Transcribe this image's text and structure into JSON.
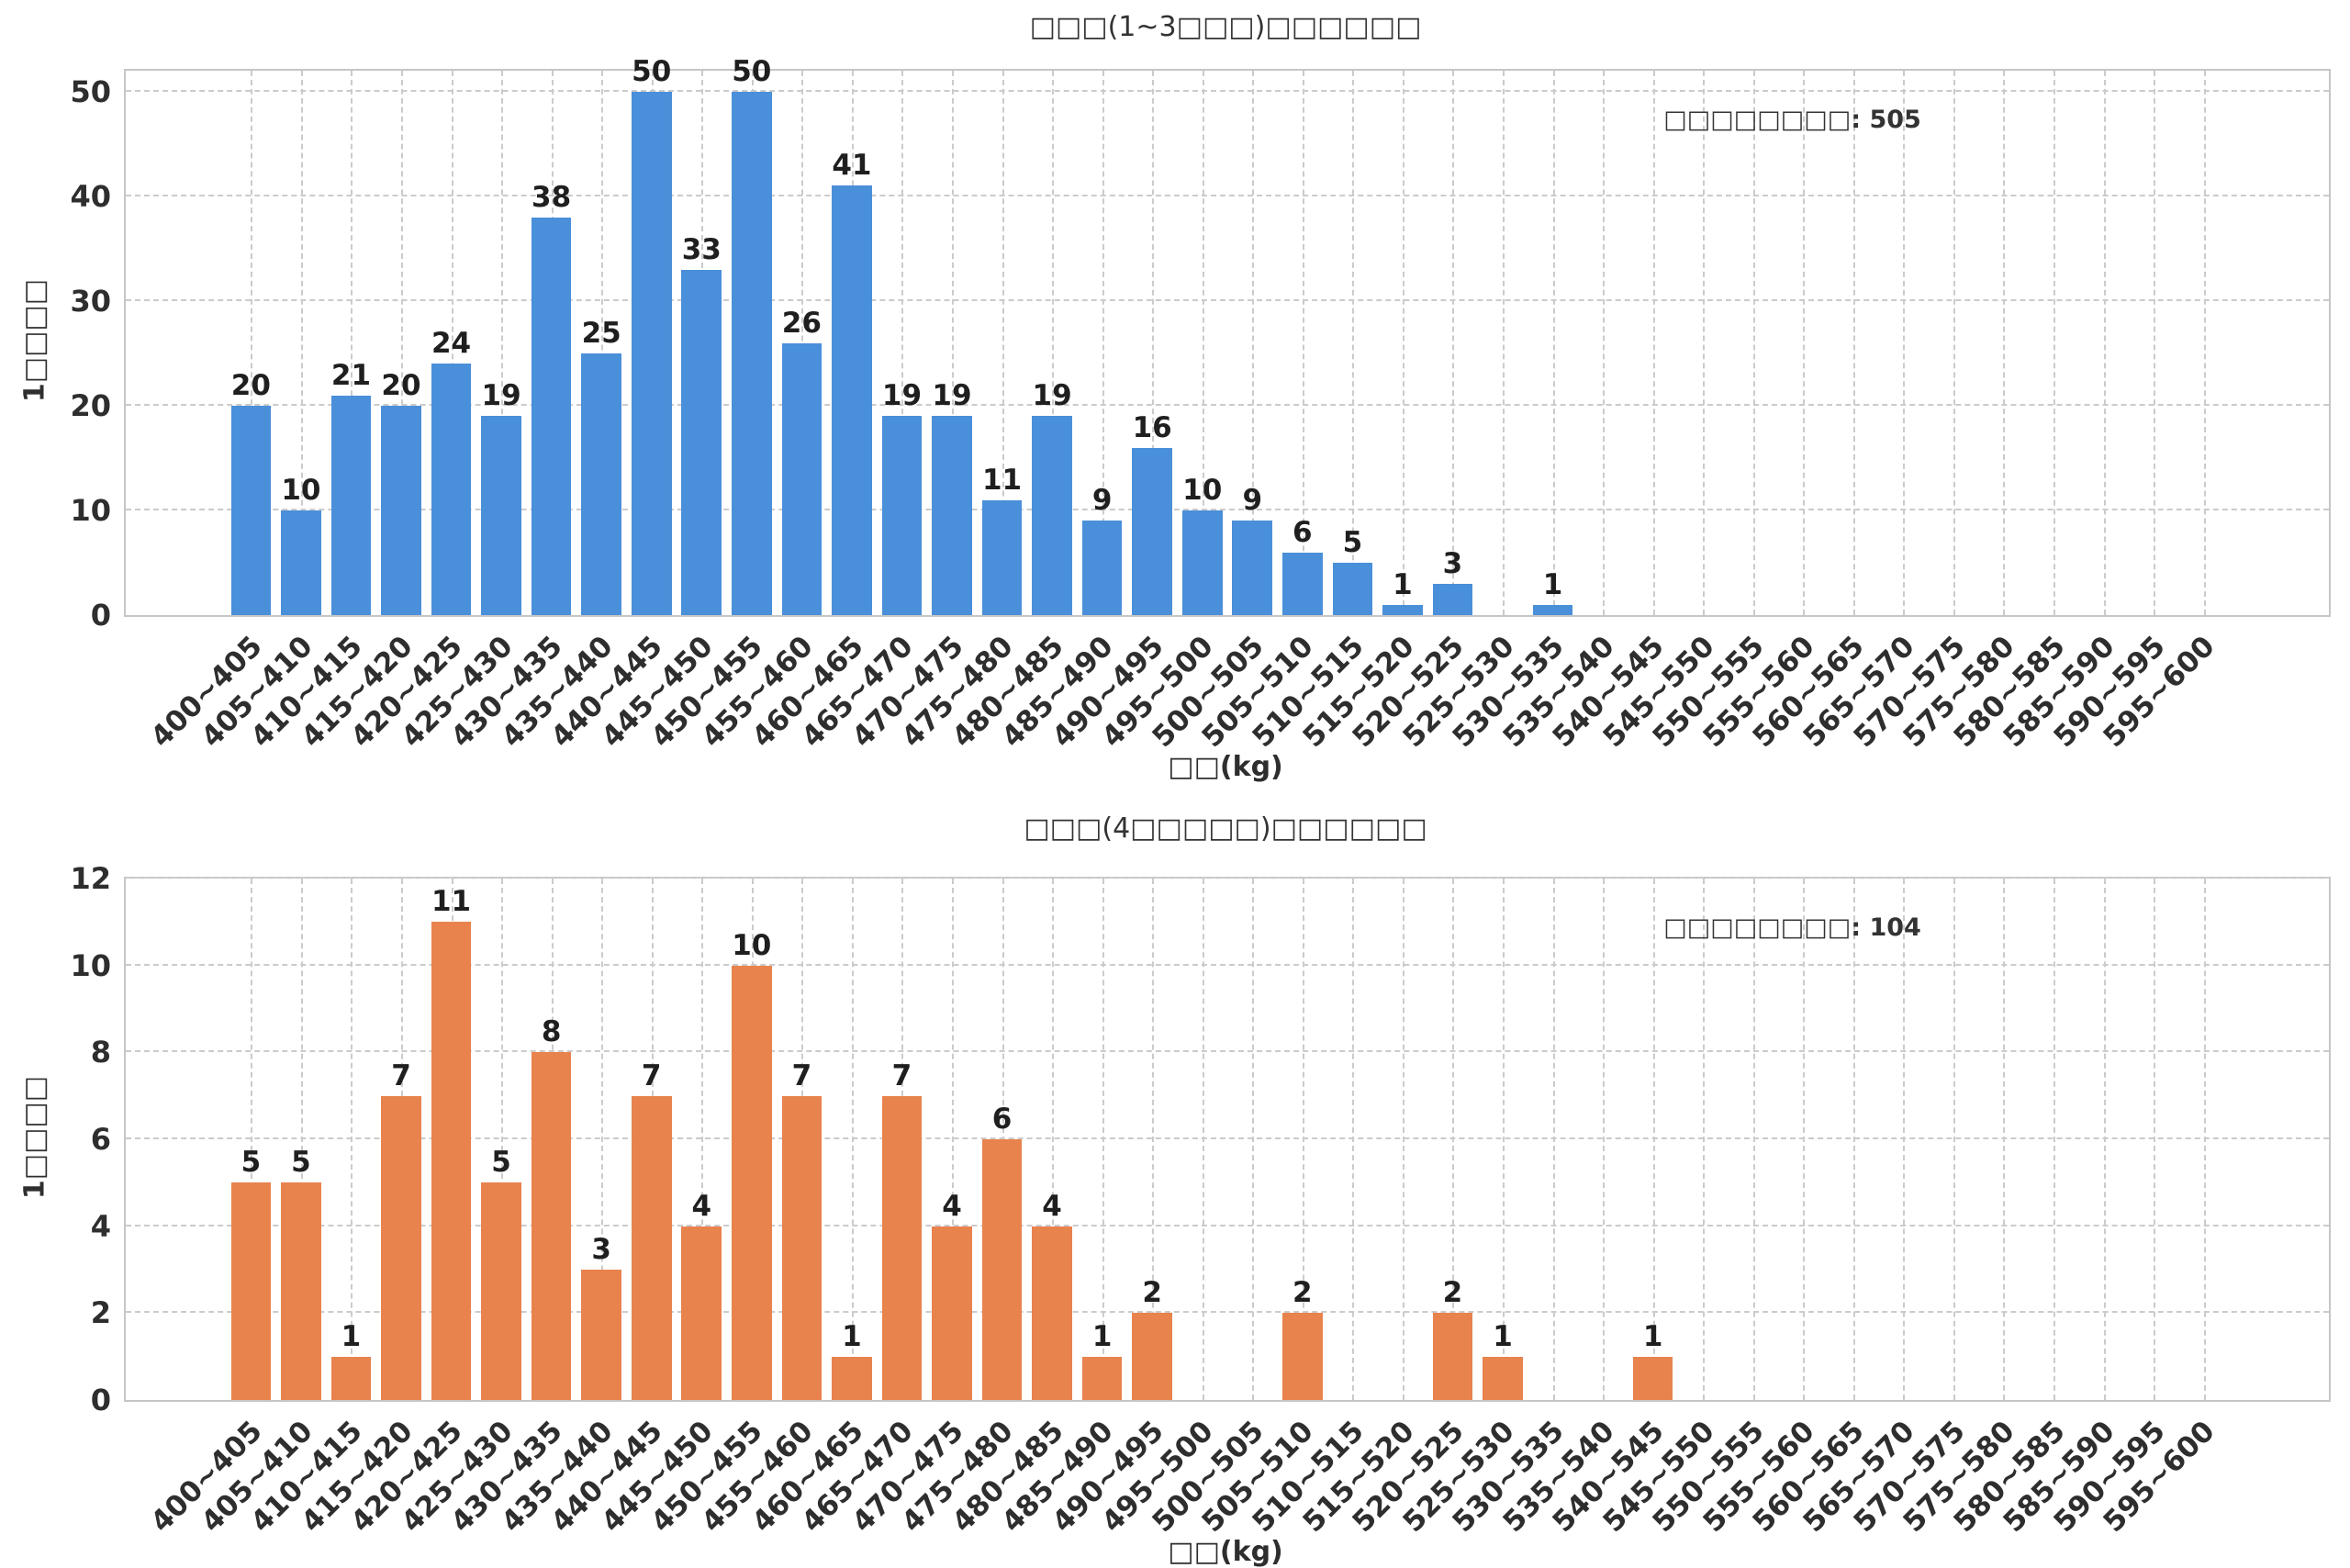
{
  "page": {
    "background": "#ffffff"
  },
  "chart_data": [
    {
      "type": "bar",
      "title": "□□□(1~3□□□)□□□□□□",
      "xlabel": "□□(kg)",
      "ylabel": "1□□□□",
      "annotation": "□□□□□□□□: 505",
      "total": 505,
      "bar_color": "#4a8fd9",
      "grid": "dashed",
      "legend": "none",
      "ylim": [
        0,
        52
      ],
      "yticks": [
        0,
        10,
        20,
        30,
        40,
        50
      ],
      "categories": [
        "400~405",
        "405~410",
        "410~415",
        "415~420",
        "420~425",
        "425~430",
        "430~435",
        "435~440",
        "440~445",
        "445~450",
        "450~455",
        "455~460",
        "460~465",
        "465~470",
        "470~475",
        "475~480",
        "480~485",
        "485~490",
        "490~495",
        "495~500",
        "500~505",
        "505~510",
        "510~515",
        "515~520",
        "520~525",
        "525~530",
        "530~535",
        "535~540",
        "540~545",
        "545~550",
        "550~555",
        "555~560",
        "560~565",
        "565~570",
        "570~575",
        "575~580",
        "580~585",
        "585~590",
        "590~595",
        "595~600"
      ],
      "values": [
        20,
        10,
        21,
        20,
        24,
        19,
        38,
        25,
        50,
        33,
        50,
        26,
        41,
        19,
        19,
        11,
        19,
        9,
        16,
        10,
        9,
        6,
        5,
        1,
        3,
        0,
        1,
        0,
        0,
        0,
        0,
        0,
        0,
        0,
        0,
        0,
        0,
        0,
        0,
        0
      ]
    },
    {
      "type": "bar",
      "title": "□□□(4□□□□□)□□□□□□",
      "xlabel": "□□(kg)",
      "ylabel": "1□□□□",
      "annotation": "□□□□□□□□: 104",
      "total": 104,
      "bar_color": "#e8834e",
      "grid": "dashed",
      "legend": "none",
      "ylim": [
        0,
        12
      ],
      "yticks": [
        0,
        2,
        4,
        6,
        8,
        10,
        12
      ],
      "categories": [
        "400~405",
        "405~410",
        "410~415",
        "415~420",
        "420~425",
        "425~430",
        "430~435",
        "435~440",
        "440~445",
        "445~450",
        "450~455",
        "455~460",
        "460~465",
        "465~470",
        "470~475",
        "475~480",
        "480~485",
        "485~490",
        "490~495",
        "495~500",
        "500~505",
        "505~510",
        "510~515",
        "515~520",
        "520~525",
        "525~530",
        "530~535",
        "535~540",
        "540~545",
        "545~550",
        "550~555",
        "555~560",
        "560~565",
        "565~570",
        "570~575",
        "575~580",
        "580~585",
        "585~590",
        "590~595",
        "595~600"
      ],
      "values": [
        5,
        5,
        1,
        7,
        11,
        5,
        8,
        3,
        7,
        4,
        10,
        7,
        1,
        7,
        4,
        6,
        4,
        1,
        2,
        0,
        0,
        2,
        0,
        0,
        2,
        1,
        0,
        0,
        1,
        0,
        0,
        0,
        0,
        0,
        0,
        0,
        0,
        0,
        0,
        0
      ]
    }
  ]
}
